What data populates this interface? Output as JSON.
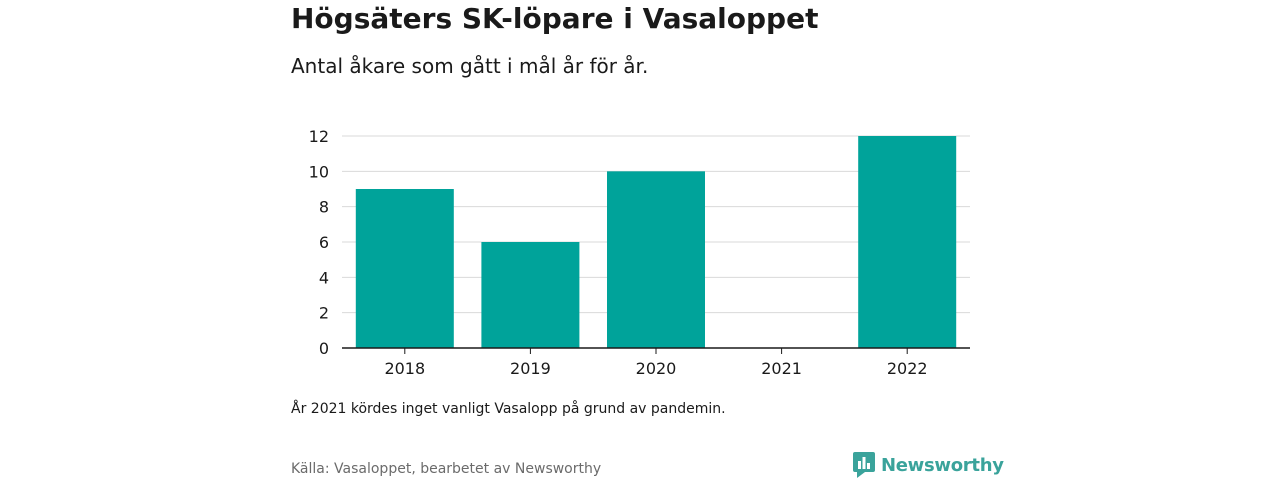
{
  "title": "Högsäters SK-löpare i Vasaloppet",
  "subtitle": "Antal åkare som gått i mål år för år.",
  "note": "År 2021 kördes inget vanligt Vasalopp på grund av pandemin.",
  "source": "Källa: Vasaloppet, bearbetet av Newsworthy",
  "brand": {
    "name": "Newsworthy",
    "icon": "newsworthy-logo-icon"
  },
  "colors": {
    "bar": "#00a39a",
    "grid": "#d9d9d9",
    "axis": "#1a1a1a",
    "brand": "#3aa39b"
  },
  "chart_data": {
    "type": "bar",
    "title": "Högsäters SK-löpare i Vasaloppet",
    "subtitle": "Antal åkare som gått i mål år för år.",
    "xlabel": "",
    "ylabel": "",
    "categories": [
      "2018",
      "2019",
      "2020",
      "2021",
      "2022"
    ],
    "values": [
      9,
      6,
      10,
      0,
      12
    ],
    "ylim": [
      0,
      12
    ],
    "yticks": [
      0,
      2,
      4,
      6,
      8,
      10,
      12
    ],
    "grid": true,
    "legend": "none"
  }
}
